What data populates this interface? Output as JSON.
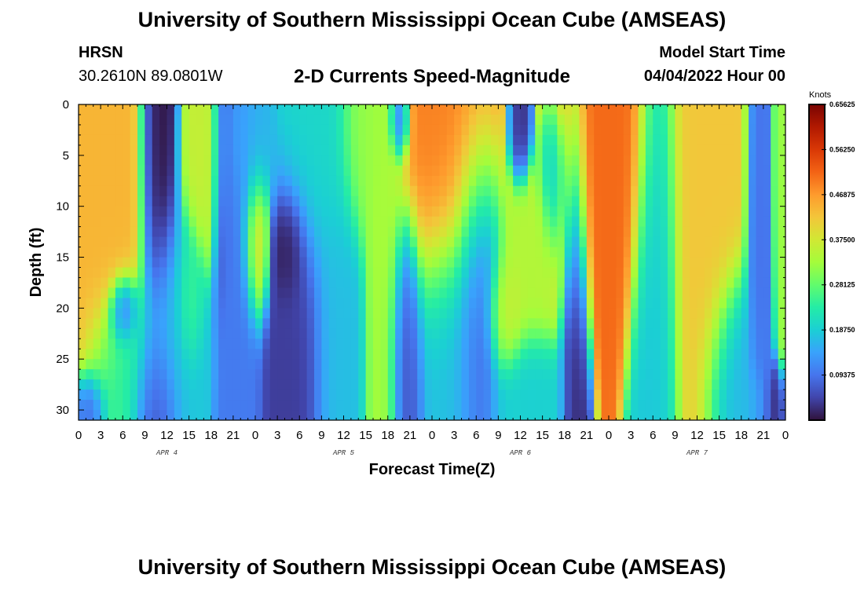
{
  "header": {
    "title": "University of Southern Mississippi Ocean Cube (AMSEAS)",
    "station": "HRSN",
    "coords": "30.2610N  89.0801W",
    "subtitle": "2-D Currents Speed-Magnitude",
    "model_label": "Model Start Time",
    "model_date": "04/04/2022 Hour 00"
  },
  "footer": {
    "title": "University of Southern Mississippi Ocean Cube (AMSEAS)"
  },
  "chart_data": {
    "type": "heatmap",
    "title": "2-D Currents Speed-Magnitude",
    "xlabel": "Forecast Time(Z)",
    "ylabel": "Depth (ft)",
    "xlim": [
      0,
      96
    ],
    "ylim": [
      0,
      31
    ],
    "y_inverted": true,
    "x_ticks": [
      0,
      3,
      6,
      9,
      12,
      15,
      18,
      21,
      24,
      27,
      30,
      33,
      36,
      39,
      42,
      45,
      48,
      51,
      54,
      57,
      60,
      63,
      66,
      69,
      72,
      75,
      78,
      81,
      84,
      87,
      90,
      93,
      96
    ],
    "x_tick_labels": [
      "0",
      "3",
      "6",
      "9",
      "12",
      "15",
      "18",
      "21",
      "0",
      "3",
      "6",
      "9",
      "12",
      "15",
      "18",
      "21",
      "0",
      "3",
      "6",
      "9",
      "12",
      "15",
      "18",
      "21",
      "0",
      "3",
      "6",
      "9",
      "12",
      "15",
      "18",
      "21",
      "0"
    ],
    "day_labels": [
      {
        "text": "APR 4",
        "hour": 12
      },
      {
        "text": "APR 5",
        "hour": 36
      },
      {
        "text": "APR 6",
        "hour": 60
      },
      {
        "text": "APR 7",
        "hour": 84
      }
    ],
    "y_ticks": [
      0,
      5,
      10,
      15,
      20,
      25,
      30
    ],
    "y_tick_labels": [
      "0",
      "5",
      "10",
      "15",
      "20",
      "25",
      "30"
    ],
    "colorbar": {
      "units": "Knots",
      "min": 0,
      "max": 0.65625,
      "tick_values": [
        0.09375,
        0.1875,
        0.28125,
        0.375,
        0.46875,
        0.5625,
        0.65625
      ],
      "tick_labels": [
        "0.09375",
        "0.18750",
        "0.28125",
        "0.37500",
        "0.46875",
        "0.56250",
        "0.65625"
      ],
      "colormap": [
        "#30123b",
        "#4145ab",
        "#4675ed",
        "#39a2fc",
        "#1bcfd4",
        "#24eca6",
        "#61fc6c",
        "#a4fc3b",
        "#d1e834",
        "#f3c63a",
        "#fe9b2d",
        "#f36315",
        "#d93806",
        "#b11901",
        "#7a0402"
      ]
    },
    "features": [
      {
        "hour": 2.5,
        "depth": 8,
        "speed": 0.44,
        "sx": 3.2,
        "sy": 11
      },
      {
        "hour": 1.5,
        "depth": 30,
        "speed": 0.05,
        "sx": 1.2,
        "sy": 2
      },
      {
        "hour": 6.0,
        "depth": 20.5,
        "speed": 0.03,
        "sx": 1.0,
        "sy": 1.8
      },
      {
        "hour": 6.0,
        "depth": 26,
        "speed": 0.22,
        "sx": 2.5,
        "sy": 4
      },
      {
        "hour": 11.0,
        "depth": 5,
        "speed": 0.0,
        "sx": 1.2,
        "sy": 9
      },
      {
        "hour": 10.5,
        "depth": 29,
        "speed": 0.05,
        "sx": 1.5,
        "sy": 4
      },
      {
        "hour": 13.0,
        "depth": 22,
        "speed": 0.18,
        "sx": 2.0,
        "sy": 6
      },
      {
        "hour": 15.0,
        "depth": 19.5,
        "speed": 0.27,
        "sx": 0.8,
        "sy": 3
      },
      {
        "hour": 17.0,
        "depth": 4.5,
        "speed": 0.36,
        "sx": 1.6,
        "sy": 5
      },
      {
        "hour": 19.5,
        "depth": 5,
        "speed": 0.04,
        "sx": 0.7,
        "sy": 6
      },
      {
        "hour": 22.0,
        "depth": 18,
        "speed": 0.1,
        "sx": 1.3,
        "sy": 12
      },
      {
        "hour": 24.0,
        "depth": 13.5,
        "speed": 0.42,
        "sx": 0.9,
        "sy": 3.8
      },
      {
        "hour": 23.5,
        "depth": 4,
        "speed": 0.16,
        "sx": 1.5,
        "sy": 4
      },
      {
        "hour": 28.5,
        "depth": 14.5,
        "speed": 0.0,
        "sx": 1.1,
        "sy": 2.6
      },
      {
        "hour": 29.5,
        "depth": 24,
        "speed": 0.04,
        "sx": 2.0,
        "sy": 8
      },
      {
        "hour": 32.5,
        "depth": 3.5,
        "speed": 0.2,
        "sx": 2.5,
        "sy": 7
      },
      {
        "hour": 35.0,
        "depth": 23.5,
        "speed": 0.17,
        "sx": 1.8,
        "sy": 8
      },
      {
        "hour": 39.0,
        "depth": 2.5,
        "speed": 0.32,
        "sx": 1.8,
        "sy": 5
      },
      {
        "hour": 41.5,
        "depth": 17,
        "speed": 0.33,
        "sx": 1.2,
        "sy": 15
      },
      {
        "hour": 43.5,
        "depth": 1.5,
        "speed": 0.06,
        "sx": 0.7,
        "sy": 2
      },
      {
        "hour": 44.5,
        "depth": 25,
        "speed": 0.06,
        "sx": 1.2,
        "sy": 7
      },
      {
        "hour": 50.5,
        "depth": 4.5,
        "speed": 0.49,
        "sx": 3.4,
        "sy": 8.5
      },
      {
        "hour": 50.0,
        "depth": 24,
        "speed": 0.17,
        "sx": 2.2,
        "sy": 7
      },
      {
        "hour": 54.0,
        "depth": 18,
        "speed": 0.07,
        "sx": 1.8,
        "sy": 8
      },
      {
        "hour": 60.0,
        "depth": 2,
        "speed": 0.02,
        "sx": 0.8,
        "sy": 3
      },
      {
        "hour": 58.0,
        "depth": 20.5,
        "speed": 0.37,
        "sx": 1.3,
        "sy": 3
      },
      {
        "hour": 61.5,
        "depth": 15,
        "speed": 0.34,
        "sx": 2.2,
        "sy": 4.5
      },
      {
        "hour": 61.0,
        "depth": 29,
        "speed": 0.19,
        "sx": 2.5,
        "sy": 3.5
      },
      {
        "hour": 64.5,
        "depth": 7,
        "speed": 0.15,
        "sx": 1.0,
        "sy": 4
      },
      {
        "hour": 67.5,
        "depth": 20,
        "speed": 0.02,
        "sx": 0.9,
        "sy": 12
      },
      {
        "hour": 70.5,
        "depth": 4,
        "speed": 0.51,
        "sx": 3.4,
        "sy": 8.5
      },
      {
        "hour": 78.5,
        "depth": 18,
        "speed": 0.18,
        "sx": 1.5,
        "sy": 13
      },
      {
        "hour": 85.0,
        "depth": 10,
        "speed": 0.42,
        "sx": 2.5,
        "sy": 13
      },
      {
        "hour": 89.0,
        "depth": 27,
        "speed": 0.15,
        "sx": 2.0,
        "sy": 5
      },
      {
        "hour": 90.5,
        "depth": 29.5,
        "speed": 0.17,
        "sx": 2.0,
        "sy": 2
      },
      {
        "hour": 92.5,
        "depth": 16,
        "speed": 0.09,
        "sx": 0.8,
        "sy": 14
      },
      {
        "hour": 94.5,
        "depth": 29.5,
        "speed": 0.01,
        "sx": 0.8,
        "sy": 2
      },
      {
        "hour": 96.0,
        "depth": 8,
        "speed": 0.32,
        "sx": 0.8,
        "sy": 10
      }
    ]
  }
}
